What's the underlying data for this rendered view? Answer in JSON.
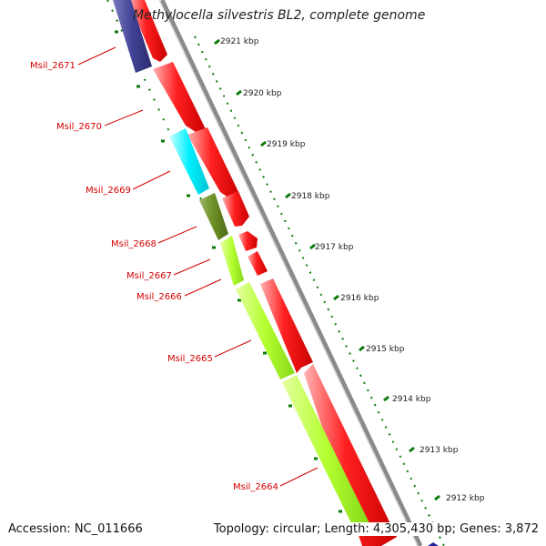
{
  "title": "Methylocella silvestris BL2, complete genome",
  "footer": {
    "accession": "Accession: NC_011666",
    "summary": "Topology: circular; Length: 4,305,430 bp; Genes: 3,872"
  },
  "colors": {
    "forward_gene": "#ff0000",
    "reverse_hypothetical": "#414196",
    "reverse_cyan": "#00ffff",
    "reverse_olive": "#6b8e23",
    "reverse_yellowgreen": "#adff2f",
    "label_red": "#d40000",
    "backbone": "#8a8a8a",
    "tick_green": "#0a7a0a"
  },
  "gene_labels": [
    {
      "id": "gene-msil-2671",
      "text": "Msil_2671"
    },
    {
      "id": "gene-msil-2670",
      "text": "Msil_2670"
    },
    {
      "id": "gene-msil-2669",
      "text": "Msil_2669"
    },
    {
      "id": "gene-msil-2668",
      "text": "Msil_2668"
    },
    {
      "id": "gene-msil-2667",
      "text": "Msil_2667"
    },
    {
      "id": "gene-msil-2666",
      "text": "Msil_2666"
    },
    {
      "id": "gene-msil-2665",
      "text": "Msil_2665"
    },
    {
      "id": "gene-msil-2664",
      "text": "Msil_2664"
    }
  ],
  "scale_ticks": [
    "2921 kbp",
    "2920 kbp",
    "2919 kbp",
    "2918 kbp",
    "2917 kbp",
    "2916 kbp",
    "2915 kbp",
    "2914 kbp",
    "2913 kbp",
    "2912 kbp"
  ]
}
